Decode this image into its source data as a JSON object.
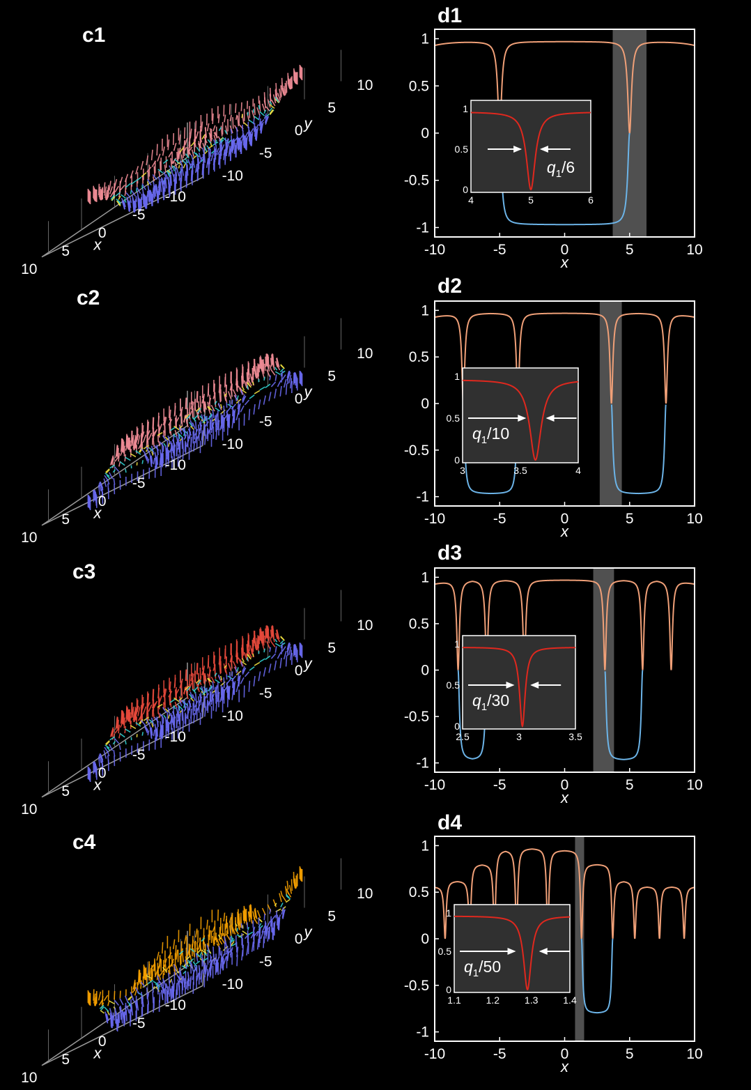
{
  "panels_3d": [
    {
      "label": "c1",
      "x_ticks": [
        "10",
        "5",
        "0",
        "-5",
        "-10"
      ],
      "y_ticks": [
        "10",
        "5",
        "0",
        "-5",
        "-10"
      ],
      "xlabel": "x",
      "ylabel": "y"
    },
    {
      "label": "c2",
      "x_ticks": [
        "10",
        "5",
        "0",
        "-5",
        "-10"
      ],
      "y_ticks": [
        "10",
        "5",
        "0",
        "-5",
        "-10"
      ],
      "xlabel": "x",
      "ylabel": "y"
    },
    {
      "label": "c3",
      "x_ticks": [
        "10",
        "5",
        "0",
        "-5",
        "-10"
      ],
      "y_ticks": [
        "10",
        "5",
        "0",
        "-5",
        "-10"
      ],
      "xlabel": "x",
      "ylabel": "y"
    },
    {
      "label": "c4",
      "x_ticks": [
        "10",
        "5",
        "0",
        "-5",
        "-10"
      ],
      "y_ticks": [
        "10",
        "5",
        "0",
        "-5",
        "-10"
      ],
      "xlabel": "x",
      "ylabel": "y"
    }
  ],
  "colors": {
    "background": "#000000",
    "upper_curve": "#f0a078",
    "lower_curve": "#6cb4e8",
    "inset_curve": "#e0281e",
    "inset_bg": "#303030",
    "shade": "#505050",
    "arrow_pink": "#f08c96",
    "arrow_blue": "#6a6af0",
    "arrow_orange": "#f5a000",
    "arrow_red": "#e84a3c"
  },
  "chart_data": [
    {
      "label": "d1",
      "type": "line",
      "xlabel": "x",
      "ylabel": "",
      "xlim": [
        -10,
        10
      ],
      "ylim": [
        -1.1,
        1.1
      ],
      "x_ticks": [
        "-10",
        "-5",
        "0",
        "5",
        "10"
      ],
      "y_ticks": [
        "1",
        "0.5",
        "0",
        "-0.5",
        "-1"
      ],
      "walls": [
        -5,
        5
      ],
      "width": 0.17,
      "shade": [
        3.7,
        6.3
      ],
      "neg_interval": [
        -5,
        5
      ],
      "inset": {
        "xlim": [
          4,
          6
        ],
        "x_ticks": [
          "4",
          "5",
          "6"
        ],
        "y_ticks": [
          "1",
          "0.5",
          "0"
        ],
        "center": 5,
        "width": 0.09,
        "annotation": "q1/6",
        "ann_pos": "right",
        "arrow_left_x": 4.85,
        "arrow_right_x": 5.15
      }
    },
    {
      "label": "d2",
      "type": "line",
      "xlabel": "x",
      "ylabel": "",
      "xlim": [
        -10,
        10
      ],
      "ylim": [
        -1.1,
        1.1
      ],
      "x_ticks": [
        "-10",
        "-5",
        "0",
        "5",
        "10"
      ],
      "y_ticks": [
        "1",
        "0.5",
        "0",
        "-0.5",
        "-1"
      ],
      "walls": [
        -7.8,
        -3.6,
        3.6,
        7.8
      ],
      "width": 0.13,
      "shade": [
        2.7,
        4.4
      ],
      "neg_interval": [
        3.6,
        7.8
      ],
      "neg_interval_2": [
        -7.8,
        -3.6
      ],
      "inset": {
        "xlim": [
          3,
          4
        ],
        "x_ticks": [
          "3",
          "3.5",
          "4"
        ],
        "y_ticks": [
          "1",
          "0.5",
          "0"
        ],
        "center": 3.63,
        "width": 0.06,
        "annotation": "q1/10",
        "ann_pos": "left",
        "arrow_left_x": 3.55,
        "arrow_right_x": 3.72
      }
    },
    {
      "label": "d3",
      "type": "line",
      "xlabel": "x",
      "ylabel": "",
      "xlim": [
        -10,
        10
      ],
      "ylim": [
        -1.1,
        1.1
      ],
      "x_ticks": [
        "-10",
        "-5",
        "0",
        "5",
        "10"
      ],
      "y_ticks": [
        "1",
        "0.5",
        "0",
        "-0.5",
        "-1"
      ],
      "walls": [
        -8.2,
        -6.0,
        -3.1,
        3.1,
        6.0,
        8.2
      ],
      "width": 0.12,
      "shade": [
        2.2,
        3.8
      ],
      "neg_interval": [
        3.1,
        6.0
      ],
      "neg_interval_2": [
        -8.2,
        -6.0
      ],
      "inset": {
        "xlim": [
          2.5,
          3.5
        ],
        "x_ticks": [
          "2.5",
          "3",
          "3.5"
        ],
        "y_ticks": [
          "1",
          "0.5",
          "0"
        ],
        "center": 3.03,
        "width": 0.03,
        "annotation": "q1/30",
        "ann_pos": "left",
        "arrow_left_x": 2.96,
        "arrow_right_x": 3.1
      }
    },
    {
      "label": "d4",
      "type": "line",
      "xlabel": "x",
      "ylabel": "",
      "xlim": [
        -10,
        10
      ],
      "ylim": [
        -1.1,
        1.1
      ],
      "x_ticks": [
        "-10",
        "-5",
        "0",
        "5",
        "10"
      ],
      "y_ticks": [
        "1",
        "0.5",
        "0",
        "-0.5",
        "-1"
      ],
      "walls": [
        -9.2,
        -7.3,
        -5.4,
        -3.7,
        -1.3,
        1.3,
        3.7,
        5.4,
        7.3,
        9.2
      ],
      "width": 0.1,
      "shade": [
        0.8,
        1.5
      ],
      "neg_interval": [
        1.3,
        3.7
      ],
      "inset": {
        "xlim": [
          1.1,
          1.4
        ],
        "x_ticks": [
          "1.1",
          "1.2",
          "1.3",
          "1.4"
        ],
        "y_ticks": [
          "1",
          "0.5",
          "0"
        ],
        "center": 1.29,
        "width": 0.012,
        "annotation": "q1/50",
        "ann_pos": "left",
        "arrow_left_x": 1.26,
        "arrow_right_x": 1.32
      }
    }
  ]
}
